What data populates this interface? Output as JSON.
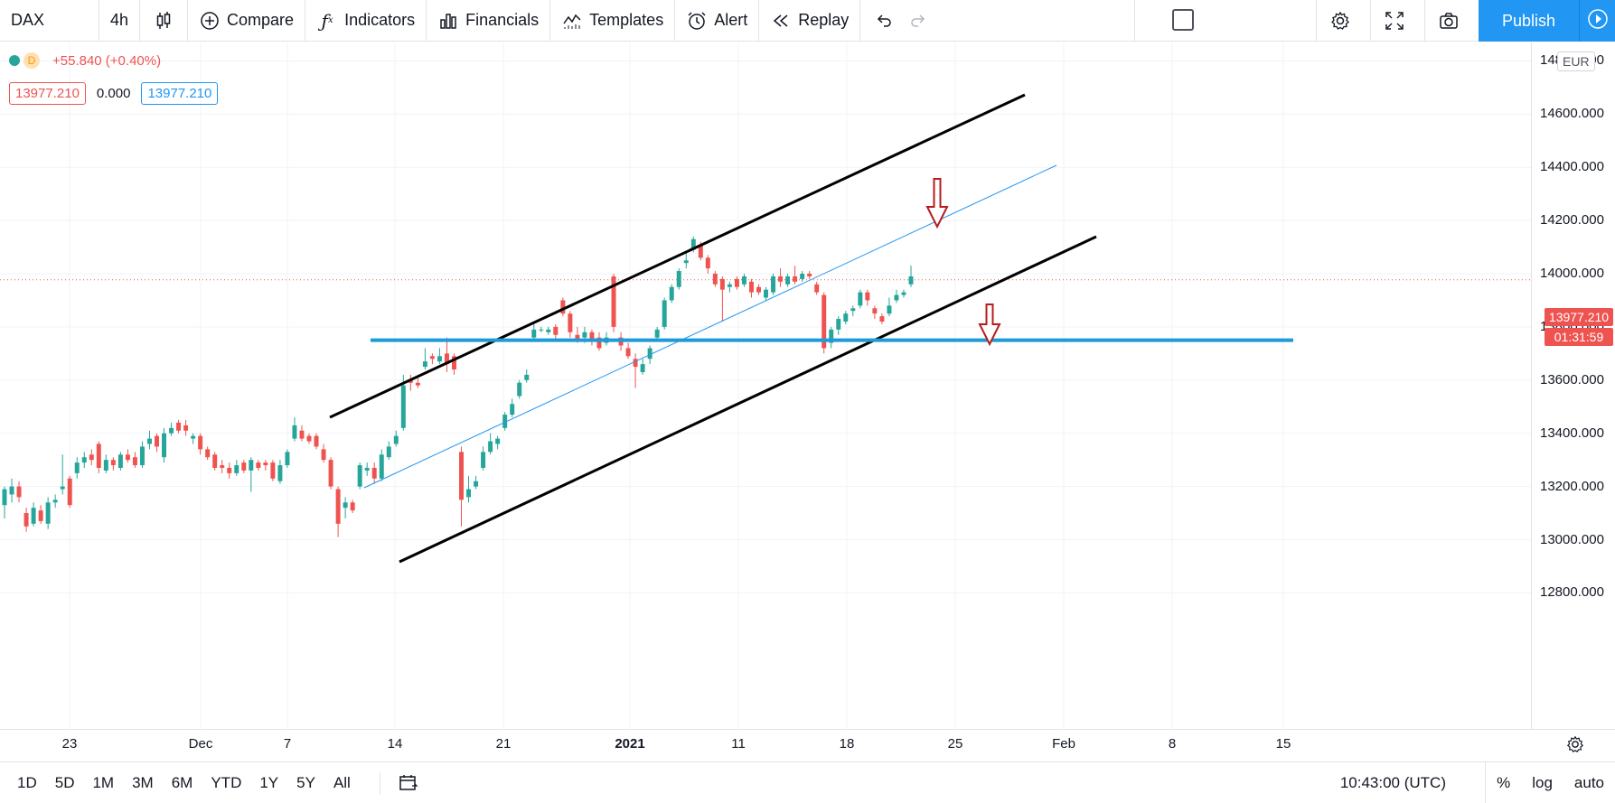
{
  "toolbar": {
    "symbol": "DAX",
    "interval": "4h",
    "compare": "Compare",
    "indicators": "Indicators",
    "financials": "Financials",
    "templates": "Templates",
    "alert": "Alert",
    "replay": "Replay",
    "publish": "Publish"
  },
  "legend": {
    "interval_badge": "D",
    "change": "+55.840 (+0.40%)",
    "value_left": "13977.210",
    "value_mid": "0.000",
    "value_right": "13977.210"
  },
  "price_axis": {
    "currency": "EUR",
    "labels": [
      "14800.000",
      "14600.000",
      "14400.000",
      "14200.000",
      "14000.000",
      "13800.000",
      "13600.000",
      "13400.000",
      "13200.000",
      "13000.000",
      "12800.000"
    ],
    "last_price": "13977.210",
    "countdown": "01:31:59"
  },
  "time_axis": {
    "labels": [
      "23",
      "Dec",
      "7",
      "14",
      "21",
      "2021",
      "11",
      "18",
      "25",
      "Feb",
      "8",
      "15"
    ]
  },
  "bottom_bar": {
    "ranges": [
      "1D",
      "5D",
      "1M",
      "3M",
      "6M",
      "YTD",
      "1Y",
      "5Y",
      "All"
    ],
    "clock": "10:43:00 (UTC)",
    "percent": "%",
    "log": "log",
    "auto": "auto"
  },
  "colors": {
    "up": "#26a69a",
    "down": "#ef5350",
    "accent": "#2196f3",
    "channel": "#000000",
    "horizontal_level": "#1e9bd7",
    "arrow": "#b71c1c"
  },
  "chart_data": {
    "type": "candlestick",
    "symbol": "DAX",
    "currency": "EUR",
    "ylim": [
      12650,
      14850
    ],
    "last": 13977.21,
    "horizontal_level": 13750,
    "candles": [
      [
        13130,
        13190,
        13080,
        13200
      ],
      [
        13170,
        13200,
        13140,
        13230
      ],
      [
        13200,
        13160,
        13140,
        13220
      ],
      [
        13100,
        13050,
        13030,
        13120
      ],
      [
        13060,
        13120,
        13050,
        13140
      ],
      [
        13110,
        13070,
        13060,
        13130
      ],
      [
        13060,
        13140,
        13040,
        13160
      ],
      [
        13140,
        13150,
        13120,
        13170
      ],
      [
        13190,
        13200,
        13170,
        13320
      ],
      [
        13230,
        13130,
        13120,
        13240
      ],
      [
        13250,
        13290,
        13230,
        13310
      ],
      [
        13290,
        13310,
        13270,
        13330
      ],
      [
        13320,
        13300,
        13280,
        13340
      ],
      [
        13360,
        13270,
        13250,
        13370
      ],
      [
        13260,
        13300,
        13250,
        13320
      ],
      [
        13300,
        13280,
        13260,
        13310
      ],
      [
        13270,
        13320,
        13260,
        13330
      ],
      [
        13320,
        13300,
        13290,
        13340
      ],
      [
        13310,
        13280,
        13270,
        13330
      ],
      [
        13280,
        13350,
        13270,
        13370
      ],
      [
        13360,
        13380,
        13340,
        13410
      ],
      [
        13390,
        13350,
        13330,
        13400
      ],
      [
        13310,
        13400,
        13290,
        13420
      ],
      [
        13400,
        13420,
        13390,
        13440
      ],
      [
        13440,
        13410,
        13400,
        13450
      ],
      [
        13430,
        13410,
        13390,
        13450
      ],
      [
        13380,
        13390,
        13360,
        13400
      ],
      [
        13390,
        13340,
        13320,
        13400
      ],
      [
        13340,
        13310,
        13300,
        13350
      ],
      [
        13320,
        13270,
        13260,
        13330
      ],
      [
        13280,
        13270,
        13250,
        13300
      ],
      [
        13270,
        13250,
        13230,
        13290
      ],
      [
        13250,
        13280,
        13240,
        13300
      ],
      [
        13290,
        13260,
        13250,
        13300
      ],
      [
        13260,
        13300,
        13180,
        13310
      ],
      [
        13290,
        13270,
        13260,
        13300
      ],
      [
        13290,
        13280,
        13260,
        13300
      ],
      [
        13290,
        13230,
        13220,
        13300
      ],
      [
        13220,
        13280,
        13210,
        13300
      ],
      [
        13280,
        13330,
        13270,
        13340
      ],
      [
        13380,
        13430,
        13370,
        13460
      ],
      [
        13410,
        13380,
        13370,
        13430
      ],
      [
        13390,
        13370,
        13360,
        13400
      ],
      [
        13390,
        13350,
        13340,
        13400
      ],
      [
        13340,
        13300,
        13290,
        13360
      ],
      [
        13300,
        13200,
        13190,
        13310
      ],
      [
        13190,
        13060,
        13010,
        13200
      ],
      [
        13120,
        13140,
        13080,
        13160
      ],
      [
        13140,
        13110,
        13100,
        13150
      ],
      [
        13200,
        13280,
        13190,
        13290
      ],
      [
        13260,
        13270,
        13240,
        13290
      ],
      [
        13270,
        13230,
        13210,
        13290
      ],
      [
        13230,
        13320,
        13220,
        13340
      ],
      [
        13310,
        13350,
        13300,
        13370
      ],
      [
        13360,
        13390,
        13350,
        13410
      ],
      [
        13420,
        13580,
        13410,
        13620
      ],
      [
        13600,
        13590,
        13560,
        13620
      ],
      [
        13590,
        13580,
        13570,
        13610
      ],
      [
        13650,
        13670,
        13640,
        13720
      ],
      [
        13690,
        13680,
        13660,
        13700
      ],
      [
        13670,
        13690,
        13660,
        13720
      ],
      [
        13700,
        13660,
        13630,
        13760
      ],
      [
        13690,
        13640,
        13620,
        13700
      ],
      [
        13330,
        13150,
        13050,
        13350
      ],
      [
        13160,
        13190,
        13140,
        13240
      ],
      [
        13200,
        13220,
        13190,
        13240
      ],
      [
        13270,
        13330,
        13260,
        13350
      ],
      [
        13330,
        13370,
        13320,
        13400
      ],
      [
        13360,
        13380,
        13340,
        13390
      ],
      [
        13420,
        13470,
        13410,
        13480
      ],
      [
        13470,
        13510,
        13460,
        13530
      ],
      [
        13540,
        13590,
        13530,
        13600
      ],
      [
        13600,
        13620,
        13590,
        13640
      ],
      [
        13760,
        13790,
        13750,
        13810
      ],
      [
        13790,
        13790,
        13780,
        13800
      ],
      [
        13780,
        13790,
        13770,
        13800
      ],
      [
        13800,
        13770,
        13750,
        13810
      ],
      [
        13900,
        13850,
        13840,
        13910
      ],
      [
        13850,
        13780,
        13760,
        13860
      ],
      [
        13770,
        13750,
        13740,
        13800
      ],
      [
        13760,
        13780,
        13740,
        13800
      ],
      [
        13780,
        13750,
        13730,
        13790
      ],
      [
        13760,
        13720,
        13710,
        13780
      ],
      [
        13740,
        13760,
        13730,
        13780
      ],
      [
        13990,
        13800,
        13780,
        14000
      ],
      [
        13760,
        13730,
        13710,
        13780
      ],
      [
        13720,
        13690,
        13680,
        13740
      ],
      [
        13680,
        13650,
        13570,
        13700
      ],
      [
        13630,
        13660,
        13620,
        13680
      ],
      [
        13680,
        13720,
        13660,
        13730
      ],
      [
        13760,
        13790,
        13750,
        13800
      ],
      [
        13800,
        13900,
        13790,
        13910
      ],
      [
        13900,
        13950,
        13890,
        13960
      ],
      [
        13950,
        14010,
        13940,
        14020
      ],
      [
        14040,
        14050,
        14020,
        14080
      ],
      [
        14090,
        14130,
        14080,
        14140
      ],
      [
        14110,
        14060,
        14050,
        14120
      ],
      [
        14060,
        14020,
        14000,
        14070
      ],
      [
        14000,
        13960,
        13950,
        14010
      ],
      [
        13980,
        13940,
        13820,
        13990
      ],
      [
        13950,
        13960,
        13930,
        13970
      ],
      [
        13980,
        13950,
        13940,
        13990
      ],
      [
        13960,
        13990,
        13950,
        14000
      ],
      [
        13970,
        13930,
        13910,
        13980
      ],
      [
        13950,
        13930,
        13920,
        13960
      ],
      [
        13910,
        13940,
        13900,
        13950
      ],
      [
        13930,
        13990,
        13920,
        14000
      ],
      [
        13990,
        13970,
        13950,
        14020
      ],
      [
        13960,
        13990,
        13950,
        14000
      ],
      [
        13990,
        13970,
        13960,
        14030
      ],
      [
        13980,
        14000,
        13970,
        14010
      ],
      [
        14000,
        13990,
        13980,
        14010
      ],
      [
        13960,
        13930,
        13920,
        13970
      ],
      [
        13920,
        13720,
        13700,
        13930
      ],
      [
        13740,
        13790,
        13720,
        13800
      ],
      [
        13790,
        13830,
        13770,
        13840
      ],
      [
        13820,
        13850,
        13810,
        13860
      ],
      [
        13860,
        13870,
        13840,
        13880
      ],
      [
        13880,
        13930,
        13870,
        13940
      ],
      [
        13930,
        13900,
        13880,
        13940
      ],
      [
        13870,
        13850,
        13830,
        13880
      ],
      [
        13840,
        13820,
        13810,
        13850
      ],
      [
        13850,
        13880,
        13840,
        13910
      ],
      [
        13900,
        13920,
        13890,
        13940
      ],
      [
        13920,
        13930,
        13910,
        13940
      ],
      [
        13960,
        13990,
        13950,
        14030
      ]
    ]
  }
}
